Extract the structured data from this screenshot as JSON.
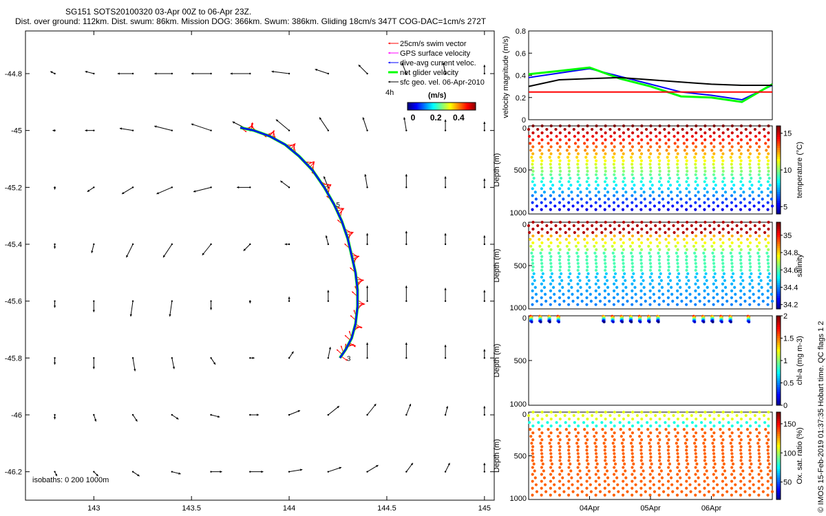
{
  "header": {
    "title_line1": "SG151 SOTS20100320 03-Apr 00Z to 06-Apr 23Z.",
    "title_line2": "Dist. over ground: 112km. Dist. swum: 86km. Mission DOG: 366km. Swum: 386km. Gliding 18cm/s 347T COG-DAC=1cm/s 272T"
  },
  "footer": {
    "copyright": "© IMOS 15-Feb-2019 01:37:35 Hobart time. QC flags 1  2"
  },
  "colors": {
    "swim": "#ff0000",
    "gps": "#ff00ff",
    "current": "#0000ff",
    "net": "#00ff00",
    "geo": "#000000",
    "black_line": "#000000"
  },
  "chart_data": [
    {
      "type": "scatter",
      "name": "track-map",
      "xlim": [
        142.65,
        145.05
      ],
      "ylim": [
        -46.3,
        -44.65
      ],
      "xticks": [
        143,
        143.5,
        144,
        144.5,
        145
      ],
      "yticks": [
        -44.8,
        -45,
        -45.2,
        -45.4,
        -45.6,
        -45.8,
        -46,
        -46.2
      ],
      "tick_labels_x": [
        "143",
        "143.5",
        "144",
        "144.5",
        "145"
      ],
      "tick_labels_y": [
        "-44.8",
        "-45",
        "-45.2",
        "-45.4",
        "-45.6",
        "-45.8",
        "-46",
        "-46.2"
      ],
      "legend": {
        "entries": [
          "25cm/s swim vector",
          "GPS surface velocity",
          "dive-avg current veloc.",
          "net glider velocity",
          "sfc geo. vel. 06-Apr-2010"
        ],
        "time_label": "4h",
        "units_label": "(m/s)",
        "colorbar_ticks": [
          "0",
          "0.2",
          "0.4"
        ]
      },
      "isobaths_label": "isobaths: 0   200   1000m",
      "track_labels": [
        "3",
        "5"
      ],
      "track": {
        "lon": [
          143.75,
          143.82,
          143.9,
          143.98,
          144.05,
          144.12,
          144.18,
          144.23,
          144.27,
          144.3,
          144.32,
          144.34,
          144.35,
          144.35,
          144.34,
          144.32,
          144.29,
          144.26
        ],
        "lat": [
          -44.99,
          -45.0,
          -45.02,
          -45.05,
          -45.09,
          -45.14,
          -45.2,
          -45.26,
          -45.32,
          -45.38,
          -45.44,
          -45.5,
          -45.56,
          -45.62,
          -45.68,
          -45.73,
          -45.77,
          -45.8
        ]
      },
      "geo_vectors": {
        "lons": [
          142.8,
          143.0,
          143.2,
          143.4,
          143.6,
          143.8,
          144.0,
          144.2,
          144.4,
          144.6,
          144.8,
          145.0
        ],
        "lats": [
          -44.8,
          -45.0,
          -45.2,
          -45.4,
          -45.6,
          -45.8,
          -46.0,
          -46.2
        ],
        "u": [
          [
            -0.02,
            -0.04,
            -0.07,
            -0.08,
            -0.09,
            -0.09,
            -0.08,
            -0.06,
            -0.04,
            -0.02,
            -0.01,
            0.0
          ],
          [
            -0.01,
            -0.04,
            -0.06,
            -0.08,
            -0.09,
            -0.08,
            -0.06,
            -0.04,
            -0.02,
            -0.01,
            0.0,
            0.0
          ],
          [
            0.0,
            -0.03,
            -0.05,
            -0.07,
            -0.08,
            -0.06,
            -0.04,
            -0.02,
            -0.01,
            0.0,
            0.0,
            0.0
          ],
          [
            0.0,
            -0.01,
            -0.03,
            -0.04,
            -0.04,
            -0.03,
            -0.02,
            -0.01,
            0.0,
            0.0,
            0.0,
            0.0
          ],
          [
            0.0,
            0.0,
            -0.01,
            -0.01,
            0.0,
            0.0,
            0.0,
            0.0,
            0.0,
            0.0,
            0.0,
            0.0
          ],
          [
            0.0,
            0.0,
            0.01,
            0.01,
            0.02,
            0.02,
            0.02,
            0.01,
            0.0,
            0.0,
            0.0,
            0.0
          ],
          [
            0.0,
            0.01,
            0.02,
            0.03,
            0.04,
            0.04,
            0.05,
            0.05,
            0.04,
            0.02,
            0.01,
            0.0
          ],
          [
            0.01,
            0.02,
            0.03,
            0.04,
            0.05,
            0.06,
            0.06,
            0.06,
            0.05,
            0.03,
            0.02,
            0.0
          ]
        ],
        "v": [
          [
            0.01,
            0.01,
            0.0,
            0.0,
            0.0,
            0.0,
            0.01,
            0.02,
            0.04,
            0.05,
            0.05,
            0.04
          ],
          [
            0.0,
            0.0,
            0.01,
            0.02,
            0.03,
            0.04,
            0.05,
            0.06,
            0.06,
            0.06,
            0.05,
            0.04
          ],
          [
            -0.01,
            -0.02,
            -0.03,
            -0.03,
            -0.02,
            0.0,
            0.03,
            0.05,
            0.06,
            0.06,
            0.05,
            0.04
          ],
          [
            -0.02,
            -0.04,
            -0.06,
            -0.06,
            -0.05,
            -0.03,
            0.0,
            0.04,
            0.05,
            0.06,
            0.05,
            0.04
          ],
          [
            -0.03,
            -0.05,
            -0.07,
            -0.07,
            -0.04,
            -0.01,
            0.02,
            0.05,
            0.07,
            0.07,
            0.06,
            0.05
          ],
          [
            -0.03,
            -0.05,
            -0.06,
            -0.05,
            -0.03,
            0.0,
            0.03,
            0.05,
            0.07,
            0.07,
            0.06,
            0.04
          ],
          [
            -0.02,
            -0.03,
            -0.03,
            -0.02,
            -0.01,
            0.0,
            0.02,
            0.04,
            0.05,
            0.05,
            0.04,
            0.04
          ],
          [
            -0.02,
            -0.02,
            -0.02,
            -0.01,
            0.0,
            0.0,
            0.01,
            0.02,
            0.03,
            0.04,
            0.04,
            0.04
          ]
        ]
      }
    },
    {
      "type": "line",
      "name": "velocity-magnitude",
      "ylabel": "velocity magnitude (m/s)",
      "ylim": [
        0,
        0.8
      ],
      "yticks": [
        0,
        0.2,
        0.4,
        0.6,
        0.8
      ],
      "tick_labels": [
        "0",
        "0.2",
        "0.4",
        "0.6",
        "0.8"
      ],
      "x_days": [
        0,
        0.5,
        1.0,
        1.5,
        2.0,
        2.5,
        3.0,
        3.5,
        4.0
      ],
      "series": [
        {
          "name": "dive-avg current veloc.",
          "color": "#0000ff",
          "values": [
            0.38,
            0.42,
            0.46,
            0.39,
            0.32,
            0.25,
            0.22,
            0.18,
            0.31
          ]
        },
        {
          "name": "net glider velocity",
          "color": "#00ff00",
          "values": [
            0.41,
            0.44,
            0.47,
            0.37,
            0.3,
            0.21,
            0.2,
            0.16,
            0.32
          ]
        },
        {
          "name": "geostrophic",
          "color": "#000000",
          "values": [
            0.3,
            0.36,
            0.37,
            0.38,
            0.36,
            0.34,
            0.32,
            0.31,
            0.31
          ]
        },
        {
          "name": "25cm/s swim",
          "color": "#ff0000",
          "values": [
            0.25,
            0.25,
            0.25,
            0.25,
            0.25,
            0.25,
            0.25,
            0.25,
            0.25
          ]
        }
      ]
    },
    {
      "type": "scatter",
      "name": "temperature-section",
      "ylabel": "Depth (m)",
      "clabel": "temperature (°C)",
      "ylim": [
        1000,
        0
      ],
      "yticks": [
        "0",
        "500",
        "1000"
      ],
      "cticks": [
        "5",
        "10",
        "15"
      ],
      "crange": [
        4,
        16
      ],
      "dives": 27
    },
    {
      "type": "scatter",
      "name": "salinity-section",
      "ylabel": "Depth (m)",
      "clabel": "salinity",
      "ylim": [
        1000,
        0
      ],
      "yticks": [
        "0",
        "500",
        "1000"
      ],
      "cticks": [
        "34.2",
        "34.4",
        "34.6",
        "34.8",
        "35"
      ],
      "crange": [
        34.15,
        35.15
      ],
      "dives": 27
    },
    {
      "type": "scatter",
      "name": "chla-section",
      "ylabel": "Depth (m)",
      "clabel": "chl-a (mg m-3)",
      "ylim": [
        1000,
        0
      ],
      "yticks": [
        "0",
        "500",
        "1000"
      ],
      "cticks": [
        "0",
        "0.5",
        "1",
        "1.5",
        "2"
      ],
      "crange": [
        0,
        2
      ],
      "dives": 27
    },
    {
      "type": "scatter",
      "name": "oxygen-section",
      "ylabel": "Depth (m)",
      "clabel": "Ox. sat. ratio (%)",
      "ylim": [
        1000,
        0
      ],
      "yticks": [
        "0",
        "500",
        "1000"
      ],
      "xticks": [
        "04Apr",
        "05Apr",
        "06Apr"
      ],
      "cticks": [
        "50",
        "100",
        "150"
      ],
      "crange": [
        20,
        170
      ],
      "dives": 27
    }
  ]
}
